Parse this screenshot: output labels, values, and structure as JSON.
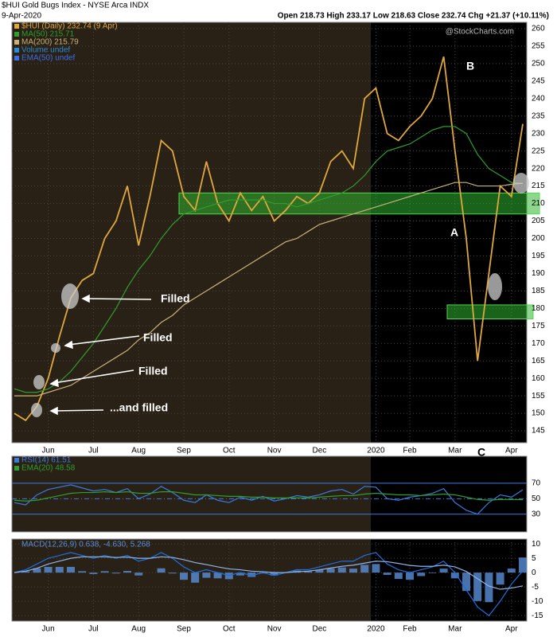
{
  "header": {
    "title": "$HUI Gold Bugs Index - NYSE Arca  INDX",
    "date": "9-Apr-2020",
    "quote": "Open 218.73  High 233.17  Low 218.63  Close 232.74  Chg +21.37 (+10.11%)",
    "brand": "@StockCharts.com"
  },
  "annotations": [
    "Filled",
    "Filled",
    "Filled",
    "...and filled",
    "A",
    "B",
    "C"
  ],
  "chart_data": [
    {
      "type": "line",
      "categories": [
        null,
        null,
        null,
        "Jun",
        null,
        null,
        null,
        "Jul",
        null,
        null,
        null,
        "Aug",
        null,
        null,
        null,
        "Sep",
        null,
        null,
        null,
        "Oct",
        null,
        null,
        null,
        "Nov",
        null,
        null,
        null,
        "Dec",
        null,
        null,
        null,
        null,
        "2020",
        null,
        null,
        "Feb",
        null,
        null,
        null,
        "Mar",
        null,
        null,
        null,
        null,
        "Apr",
        null
      ],
      "ylim": [
        141.6,
        261.8
      ],
      "yticks": [
        145,
        150,
        155,
        160,
        165,
        170,
        175,
        180,
        185,
        190,
        195,
        200,
        205,
        210,
        215,
        220,
        225,
        230,
        235,
        240,
        245,
        250,
        255,
        260
      ],
      "grid": true,
      "zones": [
        [
          207,
          213
        ],
        [
          177,
          181
        ]
      ],
      "series": [
        {
          "name": "$HUI (Daily) 232.74 (9 Apr)",
          "color": "#e0a83c",
          "values": [
            150,
            148,
            152,
            160,
            172,
            183,
            188,
            190,
            200,
            205,
            215,
            198,
            212,
            228,
            225,
            212,
            208,
            222,
            210,
            205,
            213,
            208,
            212,
            205,
            208,
            212,
            210,
            213,
            222,
            225,
            220,
            240,
            243,
            230,
            228,
            232,
            235,
            240,
            252,
            225,
            200,
            165,
            190,
            215,
            212,
            232.74
          ]
        },
        {
          "name": "MA(50) 215.71",
          "color": "#2e9e2e",
          "values": [
            157,
            156,
            156,
            157,
            159,
            162,
            166,
            170,
            175,
            180,
            186,
            191,
            195,
            200,
            204,
            207,
            208,
            209,
            210,
            211,
            211,
            211,
            211,
            210,
            210,
            209,
            210,
            211,
            212,
            213,
            215,
            218,
            222,
            225,
            226,
            227,
            229,
            231,
            232,
            232,
            230,
            224,
            220,
            218,
            216,
            215.71
          ]
        },
        {
          "name": "MA(200) 215.79",
          "color": "#c8b27a",
          "values": [
            155,
            155,
            155,
            156,
            157,
            158,
            160,
            162,
            164,
            166,
            168,
            171,
            173,
            176,
            178,
            181,
            183,
            185,
            187,
            189,
            191,
            193,
            195,
            197,
            199,
            200,
            202,
            204,
            205,
            206,
            207,
            208,
            209,
            210,
            211,
            212,
            213,
            214,
            215,
            216,
            216,
            215,
            215,
            215,
            215.5,
            215.79
          ]
        }
      ],
      "other_legend": [
        {
          "name": "Volume undef",
          "color": "#2a8bd6"
        },
        {
          "name": "EMA(50) undef",
          "color": "#3a6ee8"
        }
      ]
    },
    {
      "type": "line",
      "categories": [
        null,
        null,
        null,
        null,
        null,
        null,
        null,
        null,
        null,
        null,
        null,
        null,
        null,
        null,
        null,
        null,
        null,
        null,
        null,
        null,
        null,
        null,
        null,
        null,
        null,
        null,
        null,
        null,
        null,
        null,
        null,
        null,
        null,
        null,
        null,
        null,
        null,
        null,
        null,
        null,
        null,
        null,
        null,
        null,
        null,
        null
      ],
      "ylim": [
        7,
        105
      ],
      "yticks": [
        30,
        50,
        70
      ],
      "grid": true,
      "series": [
        {
          "name": "RSI(14) 61.51",
          "color": "#3a7be0",
          "values": [
            45,
            42,
            55,
            62,
            65,
            68,
            64,
            60,
            62,
            58,
            63,
            50,
            56,
            66,
            58,
            48,
            45,
            55,
            48,
            45,
            52,
            48,
            53,
            47,
            50,
            54,
            52,
            55,
            60,
            62,
            56,
            66,
            65,
            50,
            48,
            52,
            54,
            57,
            63,
            45,
            35,
            30,
            45,
            55,
            52,
            61.51
          ]
        },
        {
          "name": "EMA(20) 48.58",
          "color": "#2e9e2e",
          "values": [
            48,
            47,
            48,
            51,
            54,
            57,
            58,
            58,
            59,
            58,
            59,
            57,
            57,
            59,
            59,
            57,
            55,
            55,
            54,
            53,
            53,
            52,
            52,
            51,
            51,
            51,
            51,
            52,
            53,
            54,
            54,
            56,
            57,
            56,
            55,
            55,
            54,
            55,
            56,
            55,
            52,
            49,
            48,
            49,
            49,
            48.58
          ]
        }
      ]
    },
    {
      "type": "line",
      "categories": [
        null,
        null,
        null,
        "Jun",
        null,
        null,
        null,
        "Jul",
        null,
        null,
        null,
        "Aug",
        null,
        null,
        null,
        "Sep",
        null,
        null,
        null,
        "Oct",
        null,
        null,
        null,
        "Nov",
        null,
        null,
        null,
        "Dec",
        null,
        null,
        null,
        null,
        "2020",
        null,
        null,
        "Feb",
        null,
        null,
        null,
        "Mar",
        null,
        null,
        null,
        null,
        "Apr",
        null
      ],
      "ylim": [
        -16.9,
        11.7
      ],
      "yticks": [
        -15,
        -10,
        -5,
        0,
        5,
        10
      ],
      "grid": true,
      "legend_text": "MACD(12,26,9) 0.638, -4.630, 5.268",
      "series": [
        {
          "type": "bar",
          "color": "#5a8fd8",
          "values": [
            0,
            0.5,
            1.5,
            2,
            2,
            2,
            0.5,
            -0.5,
            0.5,
            -0.3,
            0.6,
            -1,
            0,
            1.5,
            -0.3,
            -2.5,
            -3.5,
            -1.8,
            -2,
            -2.3,
            -1,
            -1.5,
            -0.3,
            -1,
            0,
            0.7,
            0.5,
            1,
            1.4,
            1.8,
            1.4,
            2.7,
            3,
            -0.8,
            -2.2,
            -2.5,
            -1.2,
            -0.2,
            1.4,
            -2,
            -6.4,
            -9.9,
            -10.3,
            -4.2,
            1.4,
            5.268
          ]
        },
        {
          "type": "line",
          "color": "#1e6fe0",
          "values": [
            0,
            1,
            3,
            5,
            6,
            7,
            6,
            5,
            6,
            5,
            6,
            4,
            5,
            7,
            5,
            2,
            0,
            1,
            0,
            -1,
            0,
            -1,
            0,
            -1,
            0,
            1,
            1,
            2,
            3,
            4,
            4,
            6,
            7,
            3,
            1,
            0,
            1,
            2,
            4,
            0,
            -6,
            -12,
            -15,
            -10,
            -4,
            0.638
          ]
        },
        {
          "type": "line",
          "color": "#8fb4e8",
          "values": [
            0,
            0.5,
            1.5,
            3,
            4,
            5,
            5.5,
            5.5,
            5.5,
            5.3,
            5.4,
            5,
            5,
            5.5,
            5.3,
            4.5,
            3.5,
            2.8,
            2,
            1.3,
            1,
            0.5,
            0.3,
            0,
            0,
            0.3,
            0.5,
            1,
            1.6,
            2.2,
            2.6,
            3.3,
            4,
            3.8,
            3.2,
            2.5,
            2.2,
            2.2,
            2.6,
            2,
            0.4,
            -2.1,
            -4.7,
            -5.8,
            -5.4,
            -4.63
          ]
        }
      ]
    }
  ]
}
